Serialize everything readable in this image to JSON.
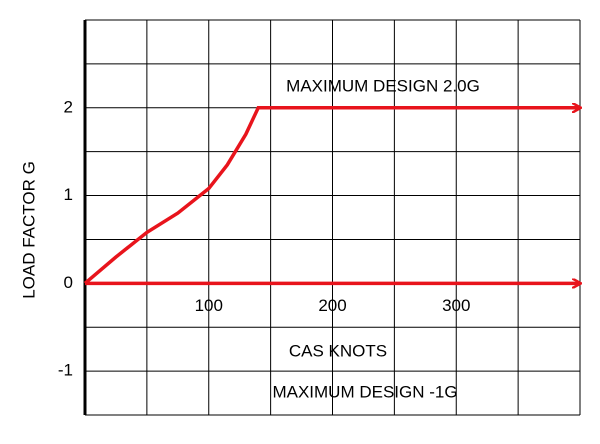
{
  "chart_data": {
    "type": "line",
    "y_label": "LOAD FACTOR  G",
    "annotations": [
      {
        "text": "MAXIMUM DESIGN 2.0G"
      },
      {
        "text": "CAS KNOTS"
      },
      {
        "text": "MAXIMUM DESIGN -1G"
      }
    ],
    "xlim": [
      0,
      400
    ],
    "xticks": [
      100,
      200,
      300
    ],
    "xminorticks": [
      0,
      50,
      150,
      250,
      350,
      400
    ],
    "ylim": [
      -1.5,
      3
    ],
    "yticks": [
      -1,
      0,
      1,
      2
    ],
    "yminorticks": [
      -1.5,
      -0.5,
      0.5,
      1.5,
      2.5,
      3
    ],
    "grid": true,
    "series": [
      {
        "color": "#e8141c",
        "x": [
          0,
          25,
          50,
          75,
          100,
          115,
          130,
          140,
          400
        ],
        "values": [
          0,
          0.3,
          0.58,
          0.8,
          1.08,
          1.35,
          1.7,
          2,
          2
        ]
      },
      {
        "color": "#e8141c",
        "x": [
          0,
          400
        ],
        "values": [
          0,
          0
        ]
      }
    ]
  }
}
